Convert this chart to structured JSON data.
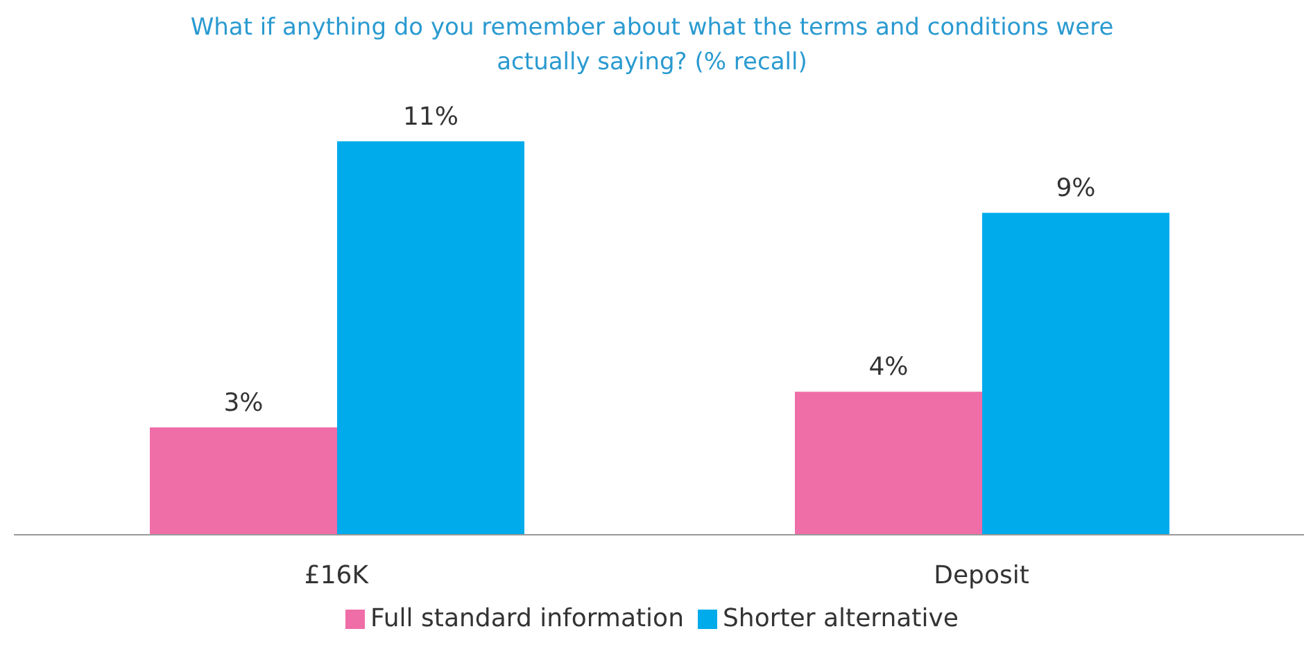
{
  "chart_data": {
    "type": "bar",
    "title": "What if anything do you remember about what the terms and conditions were actually saying? (% recall)",
    "categories": [
      "£16K",
      "Deposit"
    ],
    "series": [
      {
        "name": "Full standard information",
        "color": "#ef6ea8",
        "values": [
          3,
          4
        ],
        "value_labels": [
          "3%",
          "4%"
        ]
      },
      {
        "name": "Shorter alternative",
        "color": "#00abeb",
        "values": [
          11,
          9
        ],
        "value_labels": [
          "11%",
          "9%"
        ]
      }
    ],
    "legend": "bottom",
    "grid": false
  }
}
